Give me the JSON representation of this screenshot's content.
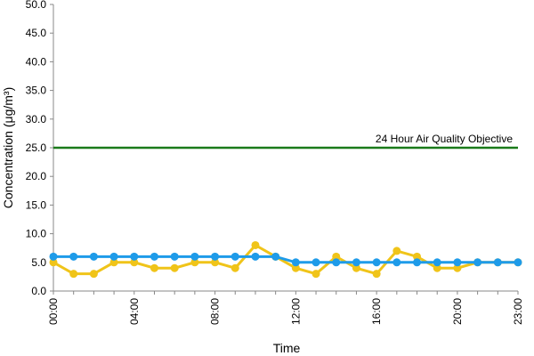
{
  "chart_data": {
    "type": "line",
    "x_label": "Time",
    "y_label": "Concentration (μg/m³)",
    "categories": [
      "00:00",
      null,
      null,
      null,
      "04:00",
      null,
      null,
      null,
      "08:00",
      null,
      null,
      null,
      "12:00",
      null,
      null,
      null,
      "16:00",
      null,
      null,
      null,
      "20:00",
      null,
      null,
      "23:00"
    ],
    "series": [
      {
        "color": "#f0c419",
        "values": [
          5,
          3,
          3,
          5,
          5,
          4,
          4,
          5,
          5,
          4,
          8,
          6,
          4,
          3,
          6,
          4,
          3,
          7,
          6,
          4,
          4,
          5,
          5,
          5
        ]
      },
      {
        "color": "#1e9be9",
        "values": [
          6,
          6,
          6,
          6,
          6,
          6,
          6,
          6,
          6,
          6,
          6,
          6,
          5,
          5,
          5,
          5,
          5,
          5,
          5,
          5,
          5,
          5,
          5,
          5
        ]
      }
    ],
    "reference_line": {
      "value": 25,
      "label": "24 Hour Air Quality Objective",
      "color": "#1a7a1a"
    },
    "ylim": [
      0,
      50
    ],
    "yticks": [
      {
        "value": 0,
        "label": "0.0"
      },
      {
        "value": 5,
        "label": "5.0"
      },
      {
        "value": 10,
        "label": "10.0"
      },
      {
        "value": 15,
        "label": "15.0"
      },
      {
        "value": 20,
        "label": "20.0"
      },
      {
        "value": 25,
        "label": "25.0"
      },
      {
        "value": 30,
        "label": "30.0"
      },
      {
        "value": 35,
        "label": "35.0"
      },
      {
        "value": 40,
        "label": "40.0"
      },
      {
        "value": 45,
        "label": "45.0"
      },
      {
        "value": 50,
        "label": "50.0"
      }
    ],
    "grid": false
  }
}
